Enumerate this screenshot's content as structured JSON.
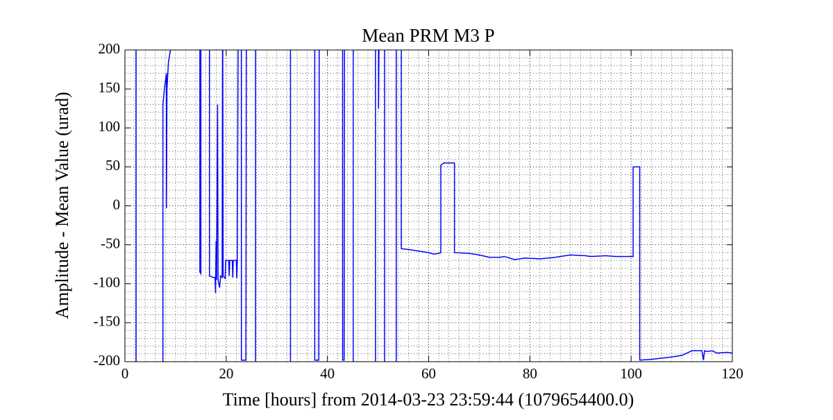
{
  "chart_data": {
    "type": "line",
    "title": "Mean PRM M3 P",
    "x_label": "Time [hours] from 2014-03-23 23:59:44 (1079654400.0)",
    "y_label": "Amplitude - Mean Value (urad)",
    "xlim": [
      0,
      120
    ],
    "xticks": [
      0,
      20,
      40,
      60,
      80,
      100,
      120
    ],
    "ylim": [
      -200,
      200
    ],
    "yticks": [
      -200,
      -150,
      -100,
      -50,
      0,
      50,
      100,
      150,
      200
    ],
    "grid": true,
    "minor_grid": {
      "x": 2,
      "y": 10
    },
    "series": [
      {
        "color": "#0000ff",
        "x": [
          2.2,
          2.2,
          7.5,
          7.5,
          7.8,
          8.1,
          8.2,
          8.2,
          8.3,
          8.6,
          9.0,
          9.2,
          14.8,
          14.8,
          15.0,
          15.0,
          16.7,
          16.7,
          17.5,
          17.8,
          17.9,
          18.0,
          18.1,
          18.3,
          18.4,
          18.7,
          18.9,
          19.2,
          19.3,
          19.4,
          19.8,
          19.9,
          20.5,
          20.6,
          20.7,
          21.2,
          21.3,
          21.4,
          22.0,
          22.1,
          22.2,
          22.4,
          23.0,
          23.0,
          23.9,
          24.0,
          25.8,
          25.8,
          32.7,
          32.7,
          37.5,
          37.5,
          38.3,
          38.4,
          43.0,
          43.0,
          43.3,
          43.4,
          45.1,
          45.1,
          49.5,
          49.5,
          50.1,
          50.1,
          50.3,
          51.3,
          51.3,
          53.6,
          53.6,
          54.6,
          54.6,
          56,
          58,
          60,
          61,
          62,
          62.4,
          62.4,
          63,
          65.1,
          65.1,
          68,
          70,
          72,
          74,
          75,
          77,
          79,
          82,
          85,
          88,
          91,
          92,
          95,
          97,
          100,
          100.4,
          100.4,
          101.7,
          101.7,
          104,
          108,
          110,
          111,
          112,
          114,
          114.3,
          114.5,
          115,
          116,
          117,
          119,
          120
        ],
        "values": [
          300,
          -300,
          -300,
          130,
          150,
          165,
          170,
          -3,
          150,
          185,
          200,
          300,
          300,
          -85,
          -87,
          300,
          300,
          -90,
          -92,
          -92,
          -112,
          -45,
          -95,
          130,
          -95,
          -105,
          -90,
          -92,
          300,
          -90,
          -93,
          -70,
          -70,
          -90,
          -70,
          -70,
          -92,
          -70,
          -70,
          -93,
          -70,
          300,
          300,
          -198,
          -198,
          300,
          300,
          -300,
          -300,
          300,
          300,
          -198,
          -198,
          300,
          300,
          -198,
          -198,
          300,
          300,
          -300,
          -300,
          300,
          300,
          125,
          300,
          300,
          -300,
          -300,
          300,
          300,
          -55,
          -56,
          -58,
          -60,
          -62,
          -61,
          -60,
          52,
          55,
          55,
          -60,
          -61,
          -63,
          -66,
          -66,
          -65,
          -69,
          -67,
          -68,
          -66,
          -63,
          -64,
          -65,
          -64,
          -65,
          -65,
          -65,
          50,
          50,
          -198,
          -197,
          -194,
          -192,
          -189,
          -186,
          -186,
          -198,
          -186,
          -187,
          -186,
          -189,
          -188,
          -189
        ]
      }
    ]
  }
}
